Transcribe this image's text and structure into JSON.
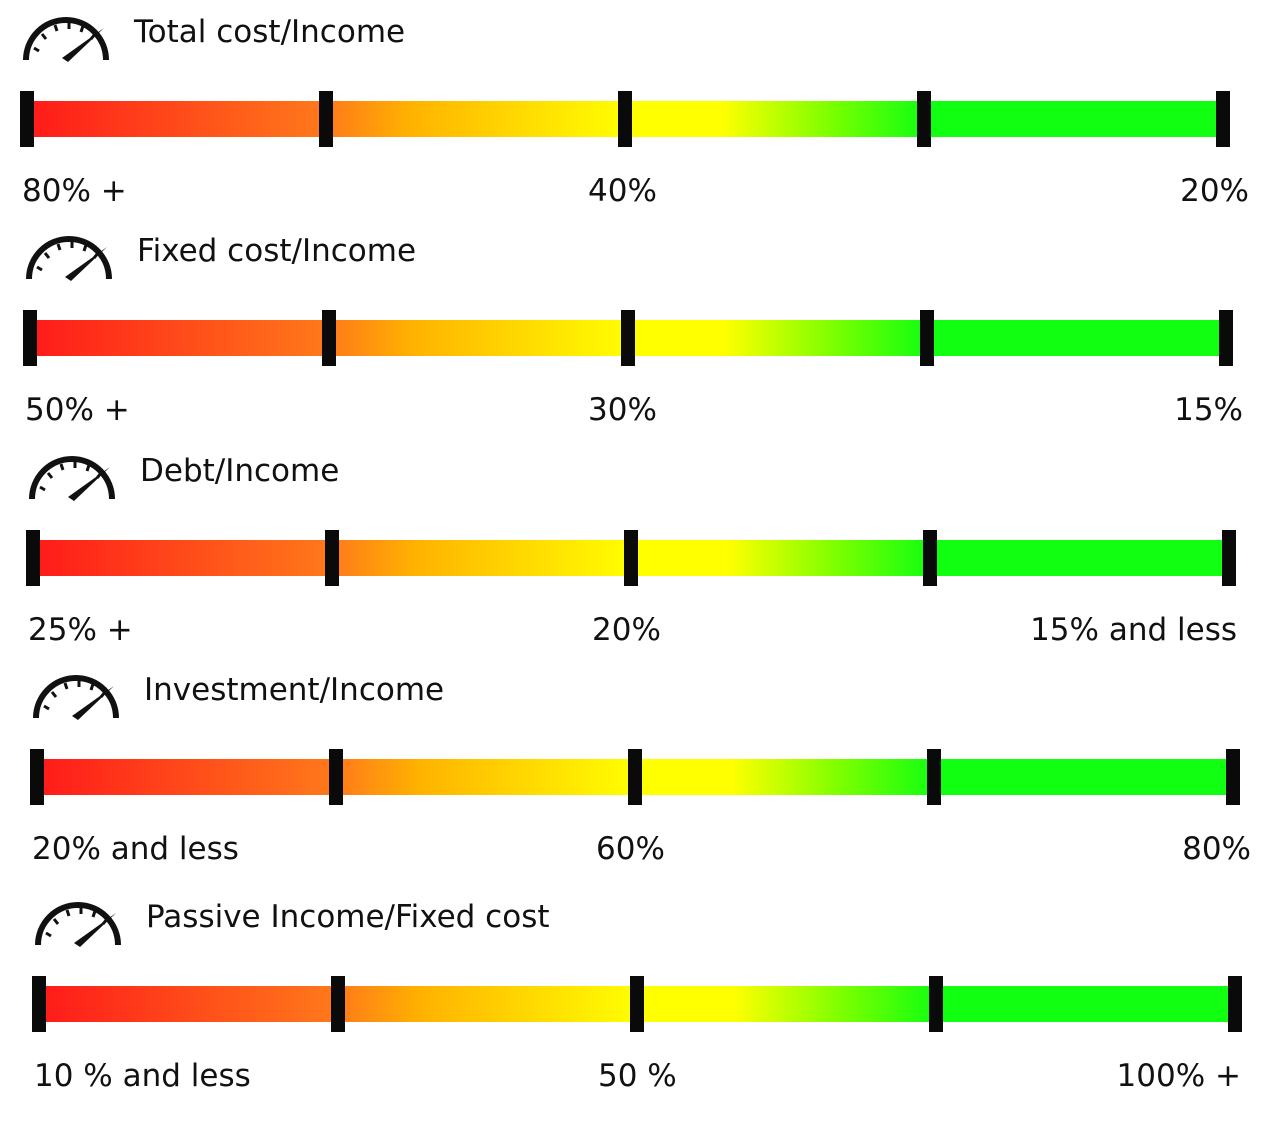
{
  "colors": {
    "red": "#ff1a1a",
    "orange": "#ff7a1a",
    "yellow": "#ffff00",
    "green": "#11ff11",
    "tick": "#0a0a0a"
  },
  "gauges": [
    {
      "title": "Total cost/Income",
      "labels": {
        "left": "80% +",
        "center": "40%",
        "right": "20%"
      }
    },
    {
      "title": "Fixed cost/Income",
      "labels": {
        "left": "50% +",
        "center": "30%",
        "right": "15%"
      }
    },
    {
      "title": "Debt/Income",
      "labels": {
        "left": "25% +",
        "center": "20%",
        "right": "15% and less"
      }
    },
    {
      "title": "Investment/Income",
      "labels": {
        "left": "20% and less",
        "center": "60%",
        "right": "80%"
      }
    },
    {
      "title": "Passive Income/Fixed cost",
      "labels": {
        "left": "10 % and less",
        "center": "50 %",
        "right": "100% +"
      }
    }
  ]
}
